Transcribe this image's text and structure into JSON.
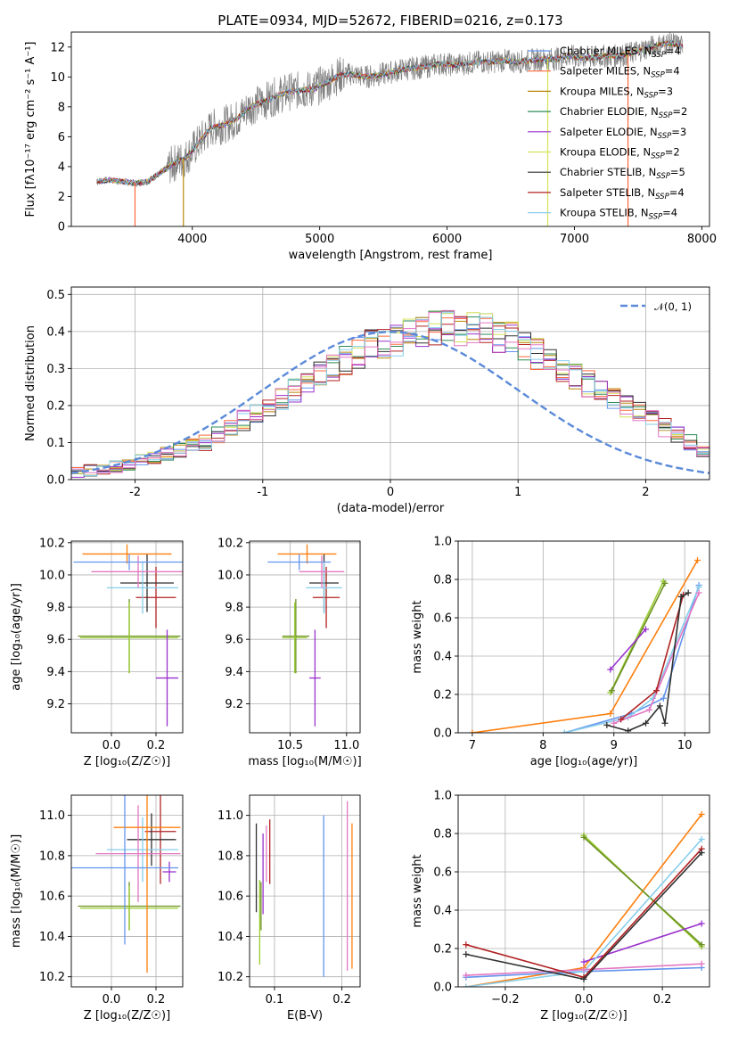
{
  "chart_data": [
    {
      "type": "line",
      "title": "PLATE=0934, MJD=52672, FIBERID=0216, z=0.173",
      "xlabel": "wavelength [Angstrom, rest frame]",
      "ylabel": "Flux [fλ10⁻¹⁷ erg cm⁻² s⁻¹ A⁻¹]",
      "xlim": [
        3050,
        8060
      ],
      "ylim": [
        0,
        13
      ],
      "xticks": [
        4000,
        5000,
        6000,
        7000,
        8000
      ],
      "yticks": [
        0,
        2,
        4,
        6,
        8,
        10,
        12
      ],
      "legend_position": "upper-right",
      "data_spectrum": {
        "color": "#808080",
        "x": [
          3250,
          3350,
          3450,
          3550,
          3650,
          3750,
          3850,
          3950,
          4050,
          4150,
          4250,
          4350,
          4450,
          4550,
          4650,
          4750,
          4850,
          4950,
          5050,
          5150,
          5250,
          5350,
          5450,
          5550,
          5650,
          5750,
          5850,
          5950,
          6050,
          6150,
          6250,
          6350,
          6450,
          6550,
          6650,
          6750,
          6850,
          6950,
          7050,
          7150,
          7250,
          7350,
          7450,
          7550,
          7650,
          7750,
          7850
        ],
        "y": [
          3.0,
          3.1,
          3.0,
          2.9,
          3.0,
          3.6,
          4.2,
          4.6,
          5.6,
          6.6,
          6.8,
          7.2,
          8.0,
          8.3,
          8.7,
          9.0,
          9.1,
          9.2,
          9.6,
          10.1,
          10.2,
          10.0,
          10.1,
          10.3,
          10.5,
          10.6,
          10.7,
          10.9,
          10.8,
          10.9,
          11.0,
          11.0,
          11.1,
          11.0,
          11.1,
          11.2,
          11.2,
          11.4,
          11.3,
          11.3,
          11.4,
          11.4,
          11.6,
          11.9,
          12.1,
          12.3,
          12.0
        ]
      },
      "series": [
        {
          "name": "Chabrier MILES, N_SSP=4",
          "color": "#6495ed"
        },
        {
          "name": "Salpeter MILES, N_SSP=4",
          "color": "#ff6a3d"
        },
        {
          "name": "Kroupa MILES, N_SSP=3",
          "color": "#b8860b"
        },
        {
          "name": "Chabrier ELODIE, N_SSP=2",
          "color": "#2e8b57"
        },
        {
          "name": "Salpeter ELODIE, N_SSP=3",
          "color": "#9932cc"
        },
        {
          "name": "Kroupa ELODIE, N_SSP=2",
          "color": "#d4e157"
        },
        {
          "name": "Chabrier STELIB, N_SSP=5",
          "color": "#303030"
        },
        {
          "name": "Salpeter STELIB, N_SSP=4",
          "color": "#b22222"
        },
        {
          "name": "Kroupa STELIB, N_SSP=4",
          "color": "#87ceeb"
        }
      ]
    },
    {
      "type": "bar",
      "title": "",
      "xlabel": "(data-model)/error",
      "ylabel": "Normed distribution",
      "xlim": [
        -2.5,
        2.5
      ],
      "ylim": [
        0,
        0.52
      ],
      "xticks": [
        -2,
        -1,
        0,
        1,
        2
      ],
      "yticks": [
        0.0,
        0.1,
        0.2,
        0.3,
        0.4,
        0.5
      ],
      "bin_edges_start": -2.5,
      "bin_width": 0.1,
      "hist_values": [
        0.02,
        0.025,
        0.03,
        0.035,
        0.04,
        0.05,
        0.06,
        0.07,
        0.08,
        0.09,
        0.1,
        0.12,
        0.14,
        0.16,
        0.18,
        0.2,
        0.22,
        0.24,
        0.26,
        0.28,
        0.3,
        0.32,
        0.34,
        0.36,
        0.37,
        0.38,
        0.39,
        0.4,
        0.41,
        0.41,
        0.41,
        0.41,
        0.4,
        0.39,
        0.38,
        0.36,
        0.34,
        0.32,
        0.3,
        0.28,
        0.26,
        0.24,
        0.22,
        0.2,
        0.18,
        0.16,
        0.14,
        0.12,
        0.1,
        0.08,
        0.07
      ],
      "hist_colors": [
        "#6495ed",
        "#ff6a3d",
        "#b8860b",
        "#2e8b57",
        "#9932cc",
        "#d4e157",
        "#303030",
        "#b22222",
        "#87ceeb",
        "#e377c2"
      ],
      "model_line": {
        "name": "𝒩(0, 1)",
        "color": "#5b8ad9",
        "style": "dashed"
      }
    },
    {
      "type": "scatter",
      "xlabel": "Z [log₁₀(Z/Z☉)]",
      "ylabel": "age  [log₁₀(age/yr)]",
      "xlim": [
        -0.18,
        0.32
      ],
      "ylim": [
        9.02,
        10.21
      ],
      "xticks": [
        0.0,
        0.2
      ],
      "xtick_labels": [
        "0.0",
        "0.2"
      ],
      "yticks": [
        9.2,
        9.4,
        9.6,
        9.8,
        10.0,
        10.2
      ],
      "points": [
        {
          "x": 0.08,
          "xerr": 0.23,
          "y": 9.62,
          "yerr": 0.23,
          "color": "#6b8e23"
        },
        {
          "x": 0.08,
          "xerr": 0.22,
          "y": 9.61,
          "yerr": 0.22,
          "color": "#9acd32"
        },
        {
          "x": 0.25,
          "xerr": 0.05,
          "y": 9.36,
          "yerr": 0.3,
          "color": "#9932cc"
        },
        {
          "x": 0.2,
          "xerr": 0.09,
          "y": 9.86,
          "yerr": 0.19,
          "color": "#b22222"
        },
        {
          "x": 0.16,
          "xerr": 0.12,
          "y": 9.95,
          "yerr": 0.18,
          "color": "#303030"
        },
        {
          "x": 0.14,
          "xerr": 0.16,
          "y": 9.92,
          "yerr": 0.16,
          "color": "#87ceeb"
        },
        {
          "x": 0.12,
          "xerr": 0.21,
          "y": 10.02,
          "yerr": 0.1,
          "color": "#e377c2"
        },
        {
          "x": 0.07,
          "xerr": 0.2,
          "y": 10.13,
          "yerr": 0.06,
          "color": "#ff7f0e"
        },
        {
          "x": 0.08,
          "xerr": 0.25,
          "y": 10.08,
          "yerr": 0.05,
          "color": "#6495ed"
        }
      ]
    },
    {
      "type": "scatter",
      "xlabel": "mass [log₁₀(M/M☉)]",
      "ylabel": "",
      "xlim": [
        10.14,
        11.12
      ],
      "ylim": [
        9.02,
        10.21
      ],
      "xticks": [
        10.5,
        11.0
      ],
      "xtick_labels": [
        "10.5",
        "11.0"
      ],
      "yticks": [
        9.2,
        9.4,
        9.6,
        9.8,
        10.0,
        10.2
      ],
      "points": [
        {
          "x": 10.55,
          "xerr": 0.12,
          "y": 9.62,
          "yerr": 0.23,
          "color": "#6b8e23"
        },
        {
          "x": 10.54,
          "xerr": 0.11,
          "y": 9.61,
          "yerr": 0.22,
          "color": "#9acd32"
        },
        {
          "x": 10.72,
          "xerr": 0.05,
          "y": 9.36,
          "yerr": 0.3,
          "color": "#9932cc"
        },
        {
          "x": 10.82,
          "xerr": 0.12,
          "y": 9.86,
          "yerr": 0.19,
          "color": "#b22222"
        },
        {
          "x": 10.8,
          "xerr": 0.13,
          "y": 9.95,
          "yerr": 0.18,
          "color": "#303030"
        },
        {
          "x": 10.8,
          "xerr": 0.16,
          "y": 9.92,
          "yerr": 0.16,
          "color": "#87ceeb"
        },
        {
          "x": 10.78,
          "xerr": 0.2,
          "y": 10.02,
          "yerr": 0.1,
          "color": "#e377c2"
        },
        {
          "x": 10.65,
          "xerr": 0.26,
          "y": 10.13,
          "yerr": 0.06,
          "color": "#ff7f0e"
        },
        {
          "x": 10.58,
          "xerr": 0.28,
          "y": 10.08,
          "yerr": 0.05,
          "color": "#6495ed"
        }
      ]
    },
    {
      "type": "line",
      "xlabel": "age  [log₁₀(age/yr)]",
      "ylabel": "mass weight",
      "xlim": [
        6.8,
        10.35
      ],
      "ylim": [
        0,
        1.0
      ],
      "xticks": [
        7,
        8,
        9,
        10
      ],
      "yticks": [
        0.0,
        0.2,
        0.4,
        0.6,
        0.8,
        1.0
      ],
      "series": [
        {
          "color": "#ff7f0e",
          "x": [
            7.0,
            8.95,
            10.18
          ],
          "y": [
            0.0,
            0.1,
            0.9
          ]
        },
        {
          "color": "#9acd32",
          "x": [
            8.95,
            9.7
          ],
          "y": [
            0.21,
            0.79
          ]
        },
        {
          "color": "#6b8e23",
          "x": [
            8.97,
            9.72
          ],
          "y": [
            0.22,
            0.78
          ]
        },
        {
          "color": "#9932cc",
          "x": [
            8.95,
            9.45
          ],
          "y": [
            0.33,
            0.54
          ]
        },
        {
          "color": "#6495ed",
          "x": [
            8.3,
            9.25,
            9.7,
            10.2
          ],
          "y": [
            0.0,
            0.1,
            0.18,
            0.77
          ]
        },
        {
          "color": "#87ceeb",
          "x": [
            8.3,
            9.2,
            9.55,
            10.2
          ],
          "y": [
            0.0,
            0.08,
            0.18,
            0.76
          ]
        },
        {
          "color": "#e377c2",
          "x": [
            9.0,
            9.5,
            10.2
          ],
          "y": [
            0.05,
            0.12,
            0.73
          ]
        },
        {
          "color": "#b22222",
          "x": [
            9.1,
            9.6,
            9.98
          ],
          "y": [
            0.07,
            0.22,
            0.72
          ]
        },
        {
          "color": "#303030",
          "x": [
            8.9,
            9.2,
            9.45,
            9.65,
            9.72,
            9.95,
            10.05
          ],
          "y": [
            0.04,
            0.01,
            0.05,
            0.14,
            0.05,
            0.71,
            0.73
          ]
        }
      ]
    },
    {
      "type": "scatter",
      "xlabel": "Z [log₁₀(Z/Z☉)]",
      "ylabel": "mass [log₁₀(M/M☉)]",
      "xlim": [
        -0.18,
        0.32
      ],
      "ylim": [
        10.15,
        11.1
      ],
      "xticks": [
        0.0,
        0.2
      ],
      "xtick_labels": [
        "0.0",
        "0.2"
      ],
      "yticks": [
        10.2,
        10.4,
        10.6,
        10.8,
        11.0
      ],
      "points": [
        {
          "x": 0.08,
          "xerr": 0.23,
          "y": 10.55,
          "yerr": 0.12,
          "color": "#6b8e23"
        },
        {
          "x": 0.08,
          "xerr": 0.22,
          "y": 10.54,
          "yerr": 0.11,
          "color": "#9acd32"
        },
        {
          "x": 0.26,
          "xerr": 0.03,
          "y": 10.72,
          "yerr": 0.05,
          "color": "#9932cc"
        },
        {
          "x": 0.22,
          "xerr": 0.07,
          "y": 10.92,
          "yerr": 0.26,
          "color": "#b22222"
        },
        {
          "x": 0.18,
          "xerr": 0.11,
          "y": 10.88,
          "yerr": 0.13,
          "color": "#303030"
        },
        {
          "x": 0.14,
          "xerr": 0.16,
          "y": 10.83,
          "yerr": 0.16,
          "color": "#87ceeb"
        },
        {
          "x": 0.12,
          "xerr": 0.19,
          "y": 10.81,
          "yerr": 0.24,
          "color": "#e377c2"
        },
        {
          "x": 0.16,
          "xerr": 0.15,
          "y": 10.94,
          "yerr": 0.72,
          "color": "#ff7f0e"
        },
        {
          "x": 0.06,
          "xerr": 0.24,
          "y": 10.74,
          "yerr": 0.38,
          "color": "#6495ed"
        }
      ]
    },
    {
      "type": "scatter",
      "xlabel": "E(B-V)",
      "ylabel": "",
      "xlim": [
        0.063,
        0.227
      ],
      "ylim": [
        10.15,
        11.1
      ],
      "xticks": [
        0.1,
        0.2
      ],
      "xtick_labels": [
        "0.1",
        "0.2"
      ],
      "yticks": [
        10.2,
        10.4,
        10.6,
        10.8,
        11.0
      ],
      "points": [
        {
          "x": 0.073,
          "y": 10.74,
          "yerr": 0.22,
          "color": "#303030"
        },
        {
          "x": 0.078,
          "y": 10.47,
          "yerr": 0.21,
          "color": "#9acd32"
        },
        {
          "x": 0.08,
          "y": 10.55,
          "yerr": 0.12,
          "color": "#6b8e23"
        },
        {
          "x": 0.083,
          "y": 10.71,
          "yerr": 0.2,
          "color": "#9932cc"
        },
        {
          "x": 0.088,
          "y": 10.81,
          "yerr": 0.14,
          "color": "#e377c2"
        },
        {
          "x": 0.093,
          "y": 10.82,
          "yerr": 0.16,
          "color": "#b22222"
        },
        {
          "x": 0.173,
          "y": 10.6,
          "yerr": 0.4,
          "color": "#6495ed"
        },
        {
          "x": 0.208,
          "y": 10.65,
          "yerr": 0.42,
          "color": "#e377c2"
        },
        {
          "x": 0.215,
          "y": 10.6,
          "yerr": 0.36,
          "color": "#ff7f0e"
        }
      ]
    },
    {
      "type": "line",
      "xlabel": "Z [log₁₀(Z/Z☉)]",
      "ylabel": "mass weight",
      "xlim": [
        -0.32,
        0.32
      ],
      "ylim": [
        0,
        1.0
      ],
      "xticks": [
        -0.2,
        0.0,
        0.2
      ],
      "xtick_labels": [
        "−0.2",
        "0.0",
        "0.2"
      ],
      "yticks": [
        0.0,
        0.2,
        0.4,
        0.6,
        0.8,
        1.0
      ],
      "series": [
        {
          "color": "#ff7f0e",
          "x": [
            -0.3,
            0.0,
            0.3
          ],
          "y": [
            0.0,
            0.1,
            0.9
          ]
        },
        {
          "color": "#9acd32",
          "x": [
            0.0,
            0.3
          ],
          "y": [
            0.79,
            0.21
          ]
        },
        {
          "color": "#6b8e23",
          "x": [
            0.0,
            0.3
          ],
          "y": [
            0.78,
            0.22
          ]
        },
        {
          "color": "#9932cc",
          "x": [
            0.0,
            0.3
          ],
          "y": [
            0.13,
            0.33
          ]
        },
        {
          "color": "#6495ed",
          "x": [
            -0.3,
            0.0,
            0.3
          ],
          "y": [
            0.05,
            0.08,
            0.1
          ]
        },
        {
          "color": "#87ceeb",
          "x": [
            -0.3,
            0.0,
            0.3
          ],
          "y": [
            0.0,
            0.08,
            0.77
          ]
        },
        {
          "color": "#e377c2",
          "x": [
            -0.3,
            0.0,
            0.3
          ],
          "y": [
            0.06,
            0.09,
            0.12
          ]
        },
        {
          "color": "#b22222",
          "x": [
            -0.3,
            0.0,
            0.3
          ],
          "y": [
            0.22,
            0.05,
            0.72
          ]
        },
        {
          "color": "#303030",
          "x": [
            -0.3,
            0.0,
            0.3
          ],
          "y": [
            0.17,
            0.04,
            0.7
          ]
        }
      ]
    }
  ]
}
